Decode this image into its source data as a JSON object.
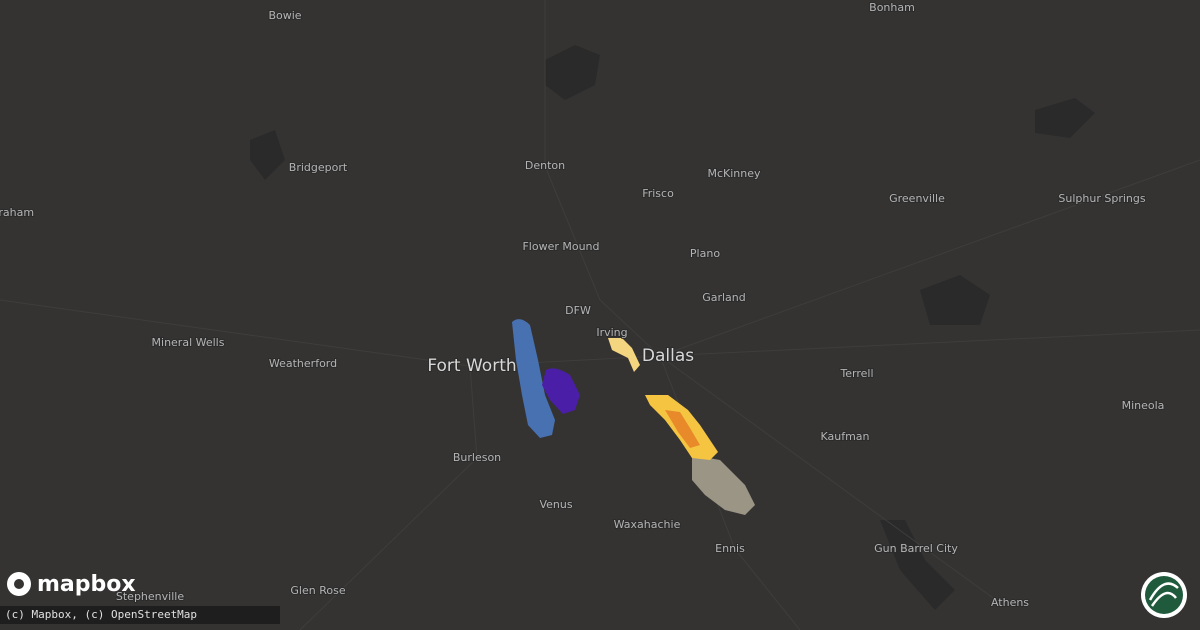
{
  "map": {
    "places": [
      "Bowie",
      "Bonham",
      "Denton",
      "McKinney",
      "Frisco",
      "Bridgeport",
      "Graham",
      "Greenville",
      "Sulphur Springs",
      "Flower Mound",
      "Plano",
      "Garland",
      "DFW",
      "Irving",
      "Dallas",
      "Fort Worth",
      "Mineral Wells",
      "Weatherford",
      "Terrell",
      "Mineola",
      "Kaufman",
      "Burleson",
      "Venus",
      "Waxahachie",
      "Ennis",
      "Gun Barrel City",
      "Stephenville",
      "Glen Rose",
      "Athens"
    ]
  },
  "logo": "mapbox",
  "attribution": "(c) Mapbox, (c) OpenStreetMap"
}
